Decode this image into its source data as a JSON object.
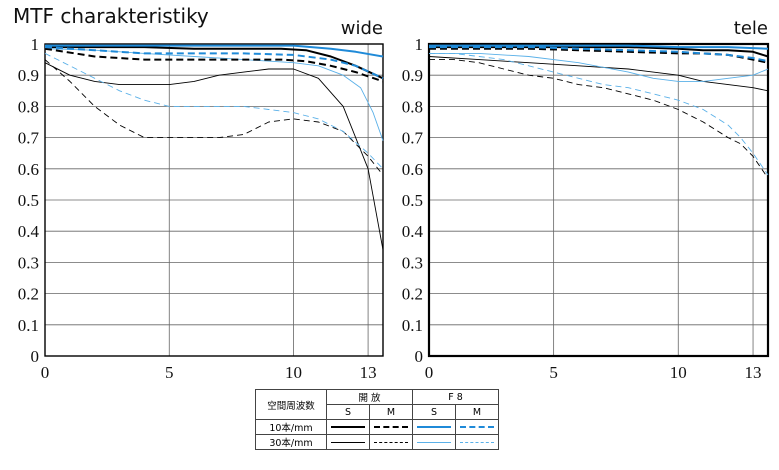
{
  "page": {
    "title": "MTF charakteristiky"
  },
  "legend": {
    "header_label": "空間周波数",
    "group_open": "開 放",
    "group_f8": "F 8",
    "col_s": "S",
    "col_m": "M",
    "row_10": "10本/mm",
    "row_30": "30本/mm"
  },
  "colors": {
    "black": "#000000",
    "blue": "#1f8ad8",
    "light_blue": "#5ab0e8"
  },
  "chart_data": [
    {
      "type": "line",
      "label": "wide",
      "xlim": [
        0,
        13.6
      ],
      "ylim": [
        0,
        1
      ],
      "xticks": [
        0,
        5,
        10,
        13
      ],
      "yticks": [
        0,
        0.1,
        0.2,
        0.3,
        0.4,
        0.5,
        0.6,
        0.7,
        0.8,
        0.9,
        1
      ],
      "ytick_labels": [
        "0",
        "0.1",
        "0.2",
        "0.3",
        "0.4",
        "0.5",
        "0.6",
        "0.7",
        "0.8",
        "0.9",
        "1"
      ],
      "series": [
        {
          "group": "10",
          "aperture": "open",
          "dir": "S",
          "color": "black",
          "width": 2.0,
          "dash": "",
          "x": [
            0,
            2,
            4,
            6,
            8,
            9.5,
            10.5,
            11.5,
            12.5,
            13.6
          ],
          "y": [
            0.99,
            0.99,
            0.99,
            0.985,
            0.985,
            0.985,
            0.98,
            0.96,
            0.93,
            0.89
          ]
        },
        {
          "group": "10",
          "aperture": "open",
          "dir": "M",
          "color": "black",
          "width": 2.0,
          "dash": "7,4",
          "x": [
            0,
            2,
            4,
            6,
            8,
            9.5,
            10.5,
            11.5,
            12.5,
            13.6
          ],
          "y": [
            0.985,
            0.96,
            0.95,
            0.95,
            0.95,
            0.95,
            0.945,
            0.93,
            0.91,
            0.88
          ]
        },
        {
          "group": "10",
          "aperture": "F8",
          "dir": "S",
          "color": "blue",
          "width": 2.0,
          "dash": "",
          "x": [
            0,
            2,
            4,
            6,
            8,
            10,
            11.5,
            12.5,
            13.6
          ],
          "y": [
            0.995,
            0.995,
            0.995,
            0.995,
            0.995,
            0.995,
            0.985,
            0.975,
            0.96
          ]
        },
        {
          "group": "10",
          "aperture": "F8",
          "dir": "M",
          "color": "blue",
          "width": 2.0,
          "dash": "7,4",
          "x": [
            0,
            2,
            4,
            6,
            8,
            10,
            11.5,
            12.5,
            13.6
          ],
          "y": [
            0.99,
            0.98,
            0.97,
            0.97,
            0.97,
            0.965,
            0.95,
            0.93,
            0.89
          ]
        },
        {
          "group": "30",
          "aperture": "open",
          "dir": "S",
          "color": "black",
          "width": 0.9,
          "dash": "",
          "x": [
            0,
            1,
            2,
            3,
            4,
            5,
            6,
            7,
            8,
            9,
            10,
            11,
            12,
            13,
            13.6
          ],
          "y": [
            0.94,
            0.9,
            0.88,
            0.87,
            0.87,
            0.87,
            0.88,
            0.9,
            0.91,
            0.92,
            0.92,
            0.89,
            0.8,
            0.6,
            0.34
          ]
        },
        {
          "group": "30",
          "aperture": "open",
          "dir": "M",
          "color": "black",
          "width": 0.9,
          "dash": "6,4",
          "x": [
            0,
            1,
            2,
            3,
            4,
            5,
            6,
            7,
            8,
            9,
            10,
            11,
            12,
            13,
            13.6
          ],
          "y": [
            0.95,
            0.88,
            0.8,
            0.74,
            0.7,
            0.7,
            0.7,
            0.7,
            0.71,
            0.75,
            0.76,
            0.75,
            0.72,
            0.64,
            0.58
          ]
        },
        {
          "group": "30",
          "aperture": "F8",
          "dir": "S",
          "color": "light_blue",
          "width": 0.9,
          "dash": "",
          "x": [
            0,
            2,
            4,
            6,
            8,
            10,
            11,
            12,
            12.7,
            13.2,
            13.6
          ],
          "y": [
            0.985,
            0.98,
            0.97,
            0.96,
            0.95,
            0.94,
            0.93,
            0.9,
            0.86,
            0.78,
            0.69
          ]
        },
        {
          "group": "30",
          "aperture": "F8",
          "dir": "M",
          "color": "light_blue",
          "width": 0.9,
          "dash": "6,4",
          "x": [
            0,
            1,
            2,
            3,
            4,
            5,
            6,
            7,
            8,
            9,
            10,
            11,
            12,
            13,
            13.6
          ],
          "y": [
            0.97,
            0.93,
            0.89,
            0.85,
            0.82,
            0.8,
            0.8,
            0.8,
            0.8,
            0.79,
            0.78,
            0.76,
            0.72,
            0.65,
            0.6
          ]
        }
      ]
    },
    {
      "type": "line",
      "label": "tele",
      "xlim": [
        0,
        13.6
      ],
      "ylim": [
        0,
        1
      ],
      "xticks": [
        0,
        5,
        10,
        13
      ],
      "yticks": [
        0,
        0.1,
        0.2,
        0.3,
        0.4,
        0.5,
        0.6,
        0.7,
        0.8,
        0.9,
        1
      ],
      "ytick_labels": [
        "0",
        "0.1",
        "0.2",
        "0.3",
        "0.4",
        "0.5",
        "0.6",
        "0.7",
        "0.8",
        "0.9",
        "1"
      ],
      "series": [
        {
          "group": "10",
          "aperture": "open",
          "dir": "S",
          "color": "black",
          "width": 2.0,
          "dash": "",
          "x": [
            0,
            2,
            4,
            6,
            8,
            10,
            11,
            12,
            13,
            13.6
          ],
          "y": [
            0.99,
            0.99,
            0.99,
            0.99,
            0.99,
            0.985,
            0.98,
            0.98,
            0.975,
            0.96
          ]
        },
        {
          "group": "10",
          "aperture": "open",
          "dir": "M",
          "color": "black",
          "width": 2.0,
          "dash": "7,4",
          "x": [
            0,
            2,
            4,
            6,
            8,
            10,
            11,
            12,
            13,
            13.6
          ],
          "y": [
            0.985,
            0.985,
            0.985,
            0.98,
            0.975,
            0.97,
            0.97,
            0.965,
            0.95,
            0.94
          ]
        },
        {
          "group": "10",
          "aperture": "F8",
          "dir": "S",
          "color": "blue",
          "width": 2.0,
          "dash": "",
          "x": [
            0,
            2,
            4,
            6,
            8,
            10,
            12,
            13.6
          ],
          "y": [
            0.995,
            0.995,
            0.995,
            0.995,
            0.995,
            0.99,
            0.99,
            0.985
          ]
        },
        {
          "group": "10",
          "aperture": "F8",
          "dir": "M",
          "color": "blue",
          "width": 2.0,
          "dash": "7,4",
          "x": [
            0,
            2,
            4,
            6,
            8,
            10,
            11,
            12,
            13,
            13.6
          ],
          "y": [
            0.99,
            0.99,
            0.99,
            0.985,
            0.98,
            0.975,
            0.97,
            0.965,
            0.955,
            0.945
          ]
        },
        {
          "group": "30",
          "aperture": "open",
          "dir": "S",
          "color": "black",
          "width": 0.9,
          "dash": "",
          "x": [
            0,
            2,
            4,
            6,
            8,
            10,
            11,
            12,
            13,
            13.6
          ],
          "y": [
            0.96,
            0.95,
            0.94,
            0.93,
            0.92,
            0.9,
            0.88,
            0.87,
            0.86,
            0.85
          ]
        },
        {
          "group": "30",
          "aperture": "open",
          "dir": "M",
          "color": "black",
          "width": 0.9,
          "dash": "6,4",
          "x": [
            0,
            1,
            2,
            3,
            4,
            5,
            6,
            7,
            8,
            9,
            10,
            11,
            12,
            12.5,
            13,
            13.6
          ],
          "y": [
            0.95,
            0.95,
            0.94,
            0.92,
            0.9,
            0.89,
            0.87,
            0.86,
            0.84,
            0.82,
            0.79,
            0.75,
            0.7,
            0.68,
            0.64,
            0.57
          ]
        },
        {
          "group": "30",
          "aperture": "F8",
          "dir": "S",
          "color": "light_blue",
          "width": 0.9,
          "dash": "",
          "x": [
            0,
            2,
            4,
            6,
            8,
            9,
            10,
            11,
            12,
            13,
            13.6
          ],
          "y": [
            0.97,
            0.97,
            0.96,
            0.94,
            0.91,
            0.89,
            0.88,
            0.88,
            0.89,
            0.9,
            0.92
          ]
        },
        {
          "group": "30",
          "aperture": "F8",
          "dir": "M",
          "color": "light_blue",
          "width": 0.9,
          "dash": "6,4",
          "x": [
            0,
            1,
            2,
            3,
            4,
            5,
            6,
            7,
            8,
            9,
            10,
            11,
            12,
            12.5,
            13,
            13.6
          ],
          "y": [
            0.97,
            0.97,
            0.96,
            0.95,
            0.93,
            0.91,
            0.89,
            0.87,
            0.86,
            0.84,
            0.82,
            0.79,
            0.74,
            0.7,
            0.65,
            0.58
          ]
        }
      ]
    }
  ]
}
